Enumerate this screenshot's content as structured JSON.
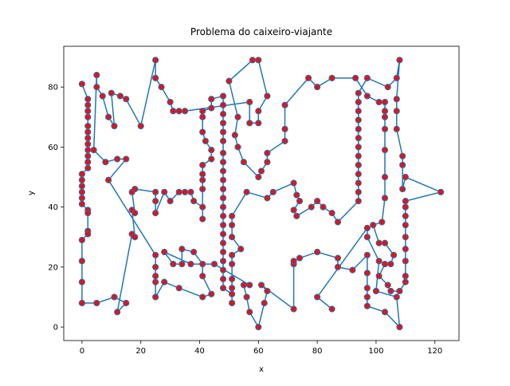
{
  "chart_data": {
    "type": "line",
    "title": "Problema do caixeiro-viajante",
    "xlabel": "x",
    "ylabel": "y",
    "color": "#1f77b4",
    "marker_color": "#e8101a",
    "xlim": [
      -6.2,
      128.2
    ],
    "ylim": [
      -4.5,
      93.6
    ],
    "xticks": [
      0,
      20,
      40,
      60,
      80,
      100,
      120
    ],
    "yticks": [
      0,
      20,
      40,
      60,
      80
    ],
    "x": [
      0,
      2,
      2,
      2,
      2,
      2,
      2,
      2,
      2,
      2,
      2,
      2,
      2,
      0,
      0,
      0,
      0,
      0,
      0,
      2,
      2,
      2,
      2,
      0,
      0,
      0,
      0,
      5,
      11,
      15,
      12,
      17,
      18,
      17,
      18,
      17,
      18,
      25,
      25,
      25,
      28,
      30,
      33,
      35,
      37,
      38,
      41,
      41,
      41,
      41,
      41,
      41,
      44,
      44,
      42,
      41,
      41,
      41,
      44,
      44,
      48,
      48,
      48,
      48,
      48,
      48,
      48,
      48,
      48,
      48,
      48,
      48,
      48,
      48,
      48,
      48,
      48,
      48,
      48,
      48,
      48,
      48,
      51,
      51,
      51,
      51,
      51,
      51,
      54,
      51,
      51,
      51,
      56,
      63,
      65,
      72,
      73,
      74,
      72,
      73,
      78,
      80,
      82,
      85,
      87,
      94,
      94,
      94,
      94,
      94,
      94,
      94,
      94,
      94,
      94,
      94,
      94,
      94,
      97,
      104,
      107,
      108,
      107,
      107,
      107,
      109,
      109,
      109,
      110,
      122,
      110,
      110,
      110,
      110,
      110,
      110,
      110,
      110,
      110,
      108,
      105,
      104,
      101,
      103,
      105,
      106,
      103,
      101,
      99,
      102,
      103,
      103,
      103,
      103,
      103,
      103,
      103,
      101,
      97,
      93,
      85,
      80,
      77,
      69,
      69,
      69,
      63,
      63,
      61,
      60,
      55,
      53,
      52,
      53,
      50,
      58,
      60,
      63,
      60,
      60,
      57,
      57,
      35,
      33,
      31,
      30,
      27,
      25,
      25,
      20,
      15,
      13,
      10,
      11,
      9,
      7,
      5,
      5,
      4,
      8,
      12,
      15,
      9,
      25,
      25,
      25,
      25,
      25,
      28,
      33,
      41,
      44,
      41,
      41,
      38,
      34,
      34,
      31,
      28,
      37,
      45,
      57,
      55,
      56,
      57,
      60,
      62,
      63,
      61,
      72,
      72,
      72,
      74,
      80,
      87,
      87,
      92,
      97,
      97,
      97,
      97,
      97,
      103,
      108,
      107,
      100,
      101,
      97,
      97,
      80,
      85
    ],
    "values": [
      81,
      76,
      74,
      72,
      70,
      67,
      65,
      63,
      61,
      59,
      57,
      55,
      53,
      51,
      49,
      47,
      45,
      43,
      41,
      39,
      38,
      32,
      31,
      29,
      22,
      15,
      8,
      8,
      10,
      8,
      5,
      31,
      30,
      39,
      38,
      45,
      46,
      45,
      42,
      38,
      45,
      42,
      45,
      45,
      45,
      42,
      40,
      36,
      46,
      49,
      51,
      54,
      56,
      59,
      62,
      65,
      70,
      72,
      73,
      76,
      77,
      74,
      71,
      68,
      65,
      62,
      58,
      55,
      52,
      49,
      46,
      43,
      40,
      37,
      34,
      31,
      28,
      25,
      22,
      19,
      16,
      13,
      11,
      8,
      13,
      16,
      21,
      24,
      26,
      30,
      34,
      37,
      45,
      43,
      45,
      48,
      44,
      42,
      39,
      37,
      40,
      42,
      40,
      38,
      35,
      42,
      45,
      48,
      51,
      54,
      57,
      60,
      63,
      66,
      69,
      72,
      75,
      78,
      83,
      80,
      83,
      89,
      76,
      72,
      66,
      57,
      54,
      46,
      50,
      45,
      42,
      40,
      37,
      34,
      30,
      26,
      22,
      17,
      15,
      12,
      12,
      14,
      17,
      21,
      21,
      24,
      28,
      28,
      34,
      35,
      43,
      50,
      59,
      66,
      70,
      72,
      75,
      75,
      77,
      83,
      83,
      80,
      83,
      74,
      66,
      62,
      58,
      55,
      52,
      50,
      55,
      60,
      64,
      70,
      82,
      89,
      89,
      77,
      72,
      68,
      68,
      75,
      72,
      72,
      72,
      75,
      80,
      83,
      89,
      67,
      76,
      77,
      78,
      67,
      70,
      77,
      80,
      84,
      59,
      55,
      56,
      56,
      49,
      24,
      20,
      17,
      15,
      10,
      15,
      13,
      10,
      11,
      17,
      21,
      25,
      26,
      21,
      21,
      25,
      21,
      21,
      14,
      14,
      10,
      5,
      0,
      8,
      12,
      14,
      6,
      21,
      22,
      23,
      25,
      23,
      20,
      19,
      24,
      18,
      13,
      10,
      7,
      5,
      0,
      10,
      12,
      22,
      30,
      33,
      10,
      6
    ]
  }
}
